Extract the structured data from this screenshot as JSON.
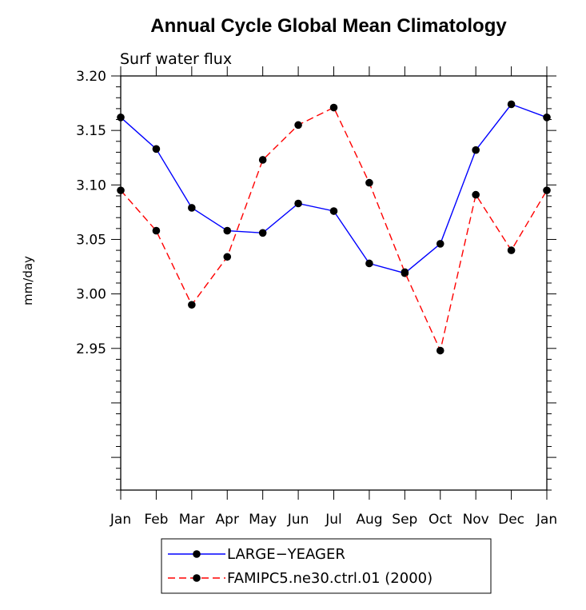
{
  "chart_data": {
    "type": "line",
    "title": "Annual Cycle Global Mean Climatology",
    "subtitle": "Surf water flux",
    "xlabel": "",
    "ylabel": "mm/day",
    "categories": [
      "Jan",
      "Feb",
      "Mar",
      "Apr",
      "May",
      "Jun",
      "Jul",
      "Aug",
      "Sep",
      "Oct",
      "Nov",
      "Dec",
      "Jan"
    ],
    "ylim": [
      2.82,
      3.2
    ],
    "yticks": [
      "2.95",
      "3.00",
      "3.05",
      "3.10",
      "3.15",
      "3.20"
    ],
    "grid": false,
    "legend_position": "bottom-center",
    "series": [
      {
        "name": "LARGE−YEAGER",
        "color": "#0000ff",
        "dash": "solid",
        "values": [
          3.162,
          3.133,
          3.079,
          3.058,
          3.056,
          3.083,
          3.076,
          3.028,
          3.019,
          3.046,
          3.132,
          3.174,
          3.162
        ]
      },
      {
        "name": "FAMIPC5.ne30.ctrl.01 (2000)",
        "color": "#ff0000",
        "dash": "dashed",
        "values": [
          3.095,
          3.058,
          2.99,
          3.034,
          3.123,
          3.155,
          3.171,
          3.102,
          3.02,
          2.948,
          3.091,
          3.04,
          3.095
        ]
      }
    ]
  }
}
